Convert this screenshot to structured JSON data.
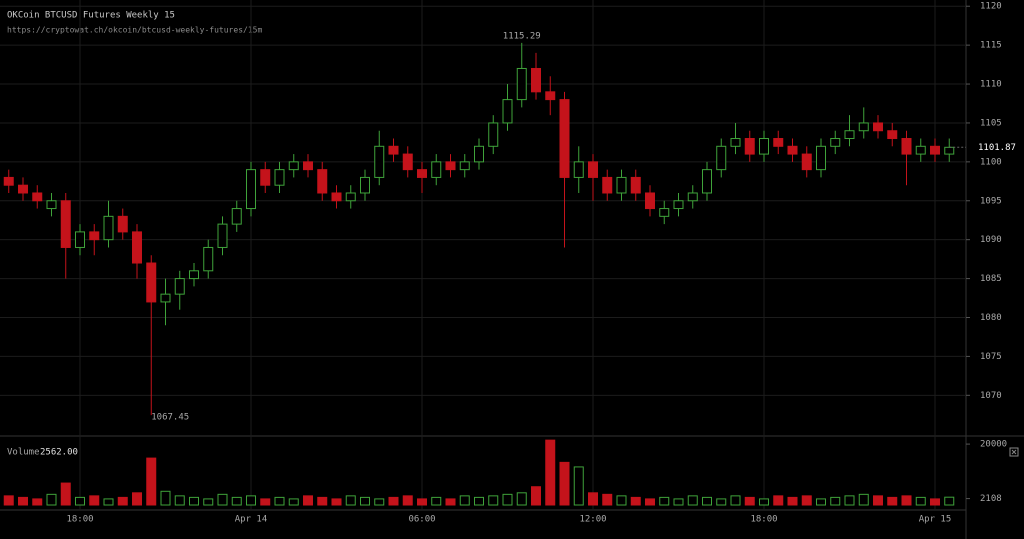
{
  "header": {
    "title": "OKCoin BTCUSD Futures Weekly 15",
    "url": "https://cryptowat.ch/okcoin/btcusd-weekly-futures/15m"
  },
  "chart_data": [
    {
      "type": "candlestick",
      "up_color": "#3fa33a",
      "down_color": "#c4131b",
      "grid": true,
      "categories": [
        null,
        null,
        null,
        null,
        null,
        "18:00",
        null,
        null,
        null,
        null,
        null,
        null,
        null,
        null,
        null,
        null,
        null,
        "Apr 14",
        null,
        null,
        null,
        null,
        null,
        null,
        null,
        null,
        null,
        null,
        null,
        "06:00",
        null,
        null,
        null,
        null,
        null,
        null,
        null,
        null,
        null,
        null,
        null,
        "12:00",
        null,
        null,
        null,
        null,
        null,
        null,
        null,
        null,
        null,
        null,
        null,
        "18:00",
        null,
        null,
        null,
        null,
        null,
        null,
        null,
        null,
        null,
        null,
        null,
        "Apr 15",
        null
      ],
      "open": [
        1098,
        1097,
        1096,
        1094,
        1095,
        1089,
        1091,
        1090,
        1093,
        1091,
        1087,
        1082,
        1083,
        1085,
        1086,
        1089,
        1092,
        1094,
        1099,
        1097,
        1099,
        1100,
        1099,
        1096,
        1095,
        1096,
        1098,
        1102,
        1101,
        1099,
        1098,
        1100,
        1099,
        1100,
        1102,
        1105,
        1108,
        1112,
        1109,
        1108,
        1098,
        1100,
        1098,
        1096,
        1098,
        1096,
        1093,
        1094,
        1095,
        1096,
        1099,
        1102,
        1103,
        1101,
        1103,
        1102,
        1101,
        1099,
        1102,
        1103,
        1104,
        1105,
        1104,
        1103,
        1101,
        1102,
        1101
      ],
      "high": [
        1099,
        1098,
        1097,
        1096,
        1096,
        1092,
        1092,
        1095,
        1094,
        1092,
        1088,
        1085,
        1086,
        1087,
        1090,
        1093,
        1095,
        1100,
        1100,
        1100,
        1101,
        1101,
        1100,
        1097,
        1097,
        1099,
        1104,
        1103,
        1102,
        1100,
        1101,
        1101,
        1101,
        1103,
        1106,
        1110,
        1115.29,
        1114,
        1111,
        1109,
        1102,
        1101,
        1099,
        1099,
        1099,
        1097,
        1095,
        1096,
        1097,
        1100,
        1103,
        1105,
        1104,
        1104,
        1104,
        1103,
        1102,
        1103,
        1104,
        1106,
        1107,
        1106,
        1105,
        1104,
        1103,
        1103,
        1103
      ],
      "low": [
        1096,
        1095,
        1094,
        1093,
        1085,
        1088,
        1088,
        1089,
        1090,
        1085,
        1067.45,
        1079,
        1081,
        1084,
        1085,
        1088,
        1091,
        1093,
        1096,
        1096,
        1098,
        1098,
        1095,
        1094,
        1094,
        1095,
        1097,
        1100,
        1098,
        1096,
        1097,
        1098,
        1098,
        1099,
        1101,
        1104,
        1107,
        1108,
        1106,
        1089,
        1096,
        1095,
        1095,
        1095,
        1095,
        1093,
        1092,
        1093,
        1094,
        1095,
        1098,
        1101,
        1100,
        1100,
        1101,
        1100,
        1098,
        1098,
        1101,
        1102,
        1103,
        1103,
        1102,
        1097,
        1100,
        1100,
        1100
      ],
      "close": [
        1097,
        1096,
        1095,
        1095,
        1089,
        1091,
        1090,
        1093,
        1091,
        1087,
        1082,
        1083,
        1085,
        1086,
        1089,
        1092,
        1094,
        1099,
        1097,
        1099,
        1100,
        1099,
        1096,
        1095,
        1096,
        1098,
        1102,
        1101,
        1099,
        1098,
        1100,
        1099,
        1100,
        1102,
        1105,
        1108,
        1112,
        1109,
        1108,
        1098,
        1100,
        1098,
        1096,
        1098,
        1096,
        1094,
        1094,
        1095,
        1096,
        1099,
        1102,
        1103,
        1101,
        1103,
        1102,
        1101,
        1099,
        1102,
        1103,
        1104,
        1105,
        1104,
        1103,
        1101,
        1102,
        1101,
        1101.87
      ],
      "ylim": [
        1064.9,
        1120.8
      ],
      "yticks": [
        1070,
        1075,
        1080,
        1085,
        1090,
        1095,
        1100,
        1105,
        1110,
        1115,
        1120
      ]
    },
    {
      "type": "bar",
      "title": "Volume",
      "current": {
        "value": 2562,
        "label": "2562.00"
      },
      "values": [
        3000,
        2500,
        2000,
        3500,
        7200,
        2500,
        3000,
        2000,
        2500,
        4000,
        15400,
        4500,
        3000,
        2500,
        2000,
        3500,
        2500,
        3000,
        2000,
        2500,
        2000,
        3000,
        2500,
        2000,
        3000,
        2500,
        2000,
        2500,
        3000,
        2000,
        2500,
        2000,
        3000,
        2500,
        3000,
        3500,
        4000,
        6000,
        21300,
        14000,
        12500,
        4000,
        3500,
        3000,
        2500,
        2000,
        2500,
        2000,
        3000,
        2500,
        2000,
        3000,
        2500,
        2000,
        3000,
        2500,
        3000,
        2000,
        2500,
        3000,
        3500,
        3000,
        2500,
        3000,
        2500,
        2000,
        2562
      ],
      "ylim": [
        0,
        22000
      ],
      "yticks": [
        2108,
        20000
      ]
    }
  ]
}
